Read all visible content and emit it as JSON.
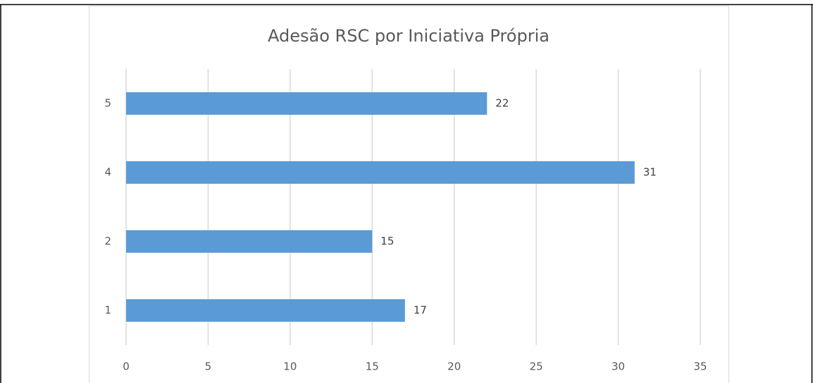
{
  "chart_data": {
    "type": "bar",
    "orientation": "horizontal",
    "title": "Adesão RSC por Iniciativa Própria",
    "categories": [
      "1",
      "2",
      "4",
      "5"
    ],
    "values": [
      17,
      15,
      31,
      22
    ],
    "color": "#5b9bd5",
    "xlim": [
      0,
      35
    ],
    "xticks": [
      0,
      5,
      10,
      15,
      20,
      25,
      30,
      35
    ],
    "grid": true
  }
}
